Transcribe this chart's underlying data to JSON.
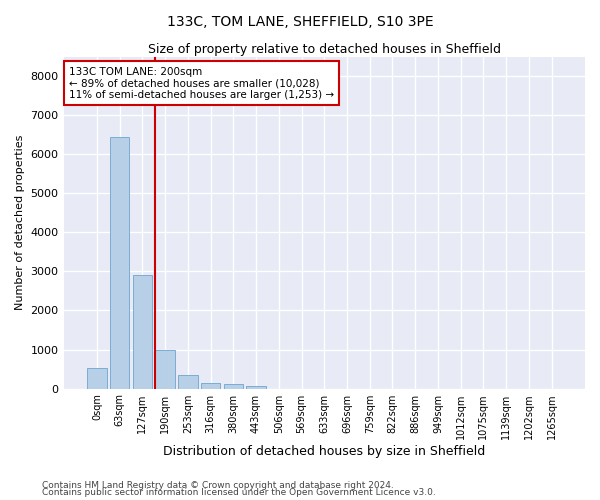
{
  "title1": "133C, TOM LANE, SHEFFIELD, S10 3PE",
  "title2": "Size of property relative to detached houses in Sheffield",
  "xlabel": "Distribution of detached houses by size in Sheffield",
  "ylabel": "Number of detached properties",
  "categories": [
    "0sqm",
    "63sqm",
    "127sqm",
    "190sqm",
    "253sqm",
    "316sqm",
    "380sqm",
    "443sqm",
    "506sqm",
    "569sqm",
    "633sqm",
    "696sqm",
    "759sqm",
    "822sqm",
    "886sqm",
    "949sqm",
    "1012sqm",
    "1075sqm",
    "1139sqm",
    "1202sqm",
    "1265sqm"
  ],
  "bar_values": [
    530,
    6430,
    2920,
    980,
    340,
    155,
    105,
    65,
    0,
    0,
    0,
    0,
    0,
    0,
    0,
    0,
    0,
    0,
    0,
    0,
    0
  ],
  "bar_color": "#b8cfe8",
  "bar_edge_color": "#7aadd4",
  "background_color": "#e8eaf6",
  "grid_color": "#ffffff",
  "vline_color": "#cc0000",
  "annotation_text": "133C TOM LANE: 200sqm\n← 89% of detached houses are smaller (10,028)\n11% of semi-detached houses are larger (1,253) →",
  "annotation_box_color": "#cc0000",
  "ylim": [
    0,
    8500
  ],
  "yticks": [
    0,
    1000,
    2000,
    3000,
    4000,
    5000,
    6000,
    7000,
    8000
  ],
  "footer1": "Contains HM Land Registry data © Crown copyright and database right 2024.",
  "footer2": "Contains public sector information licensed under the Open Government Licence v3.0."
}
